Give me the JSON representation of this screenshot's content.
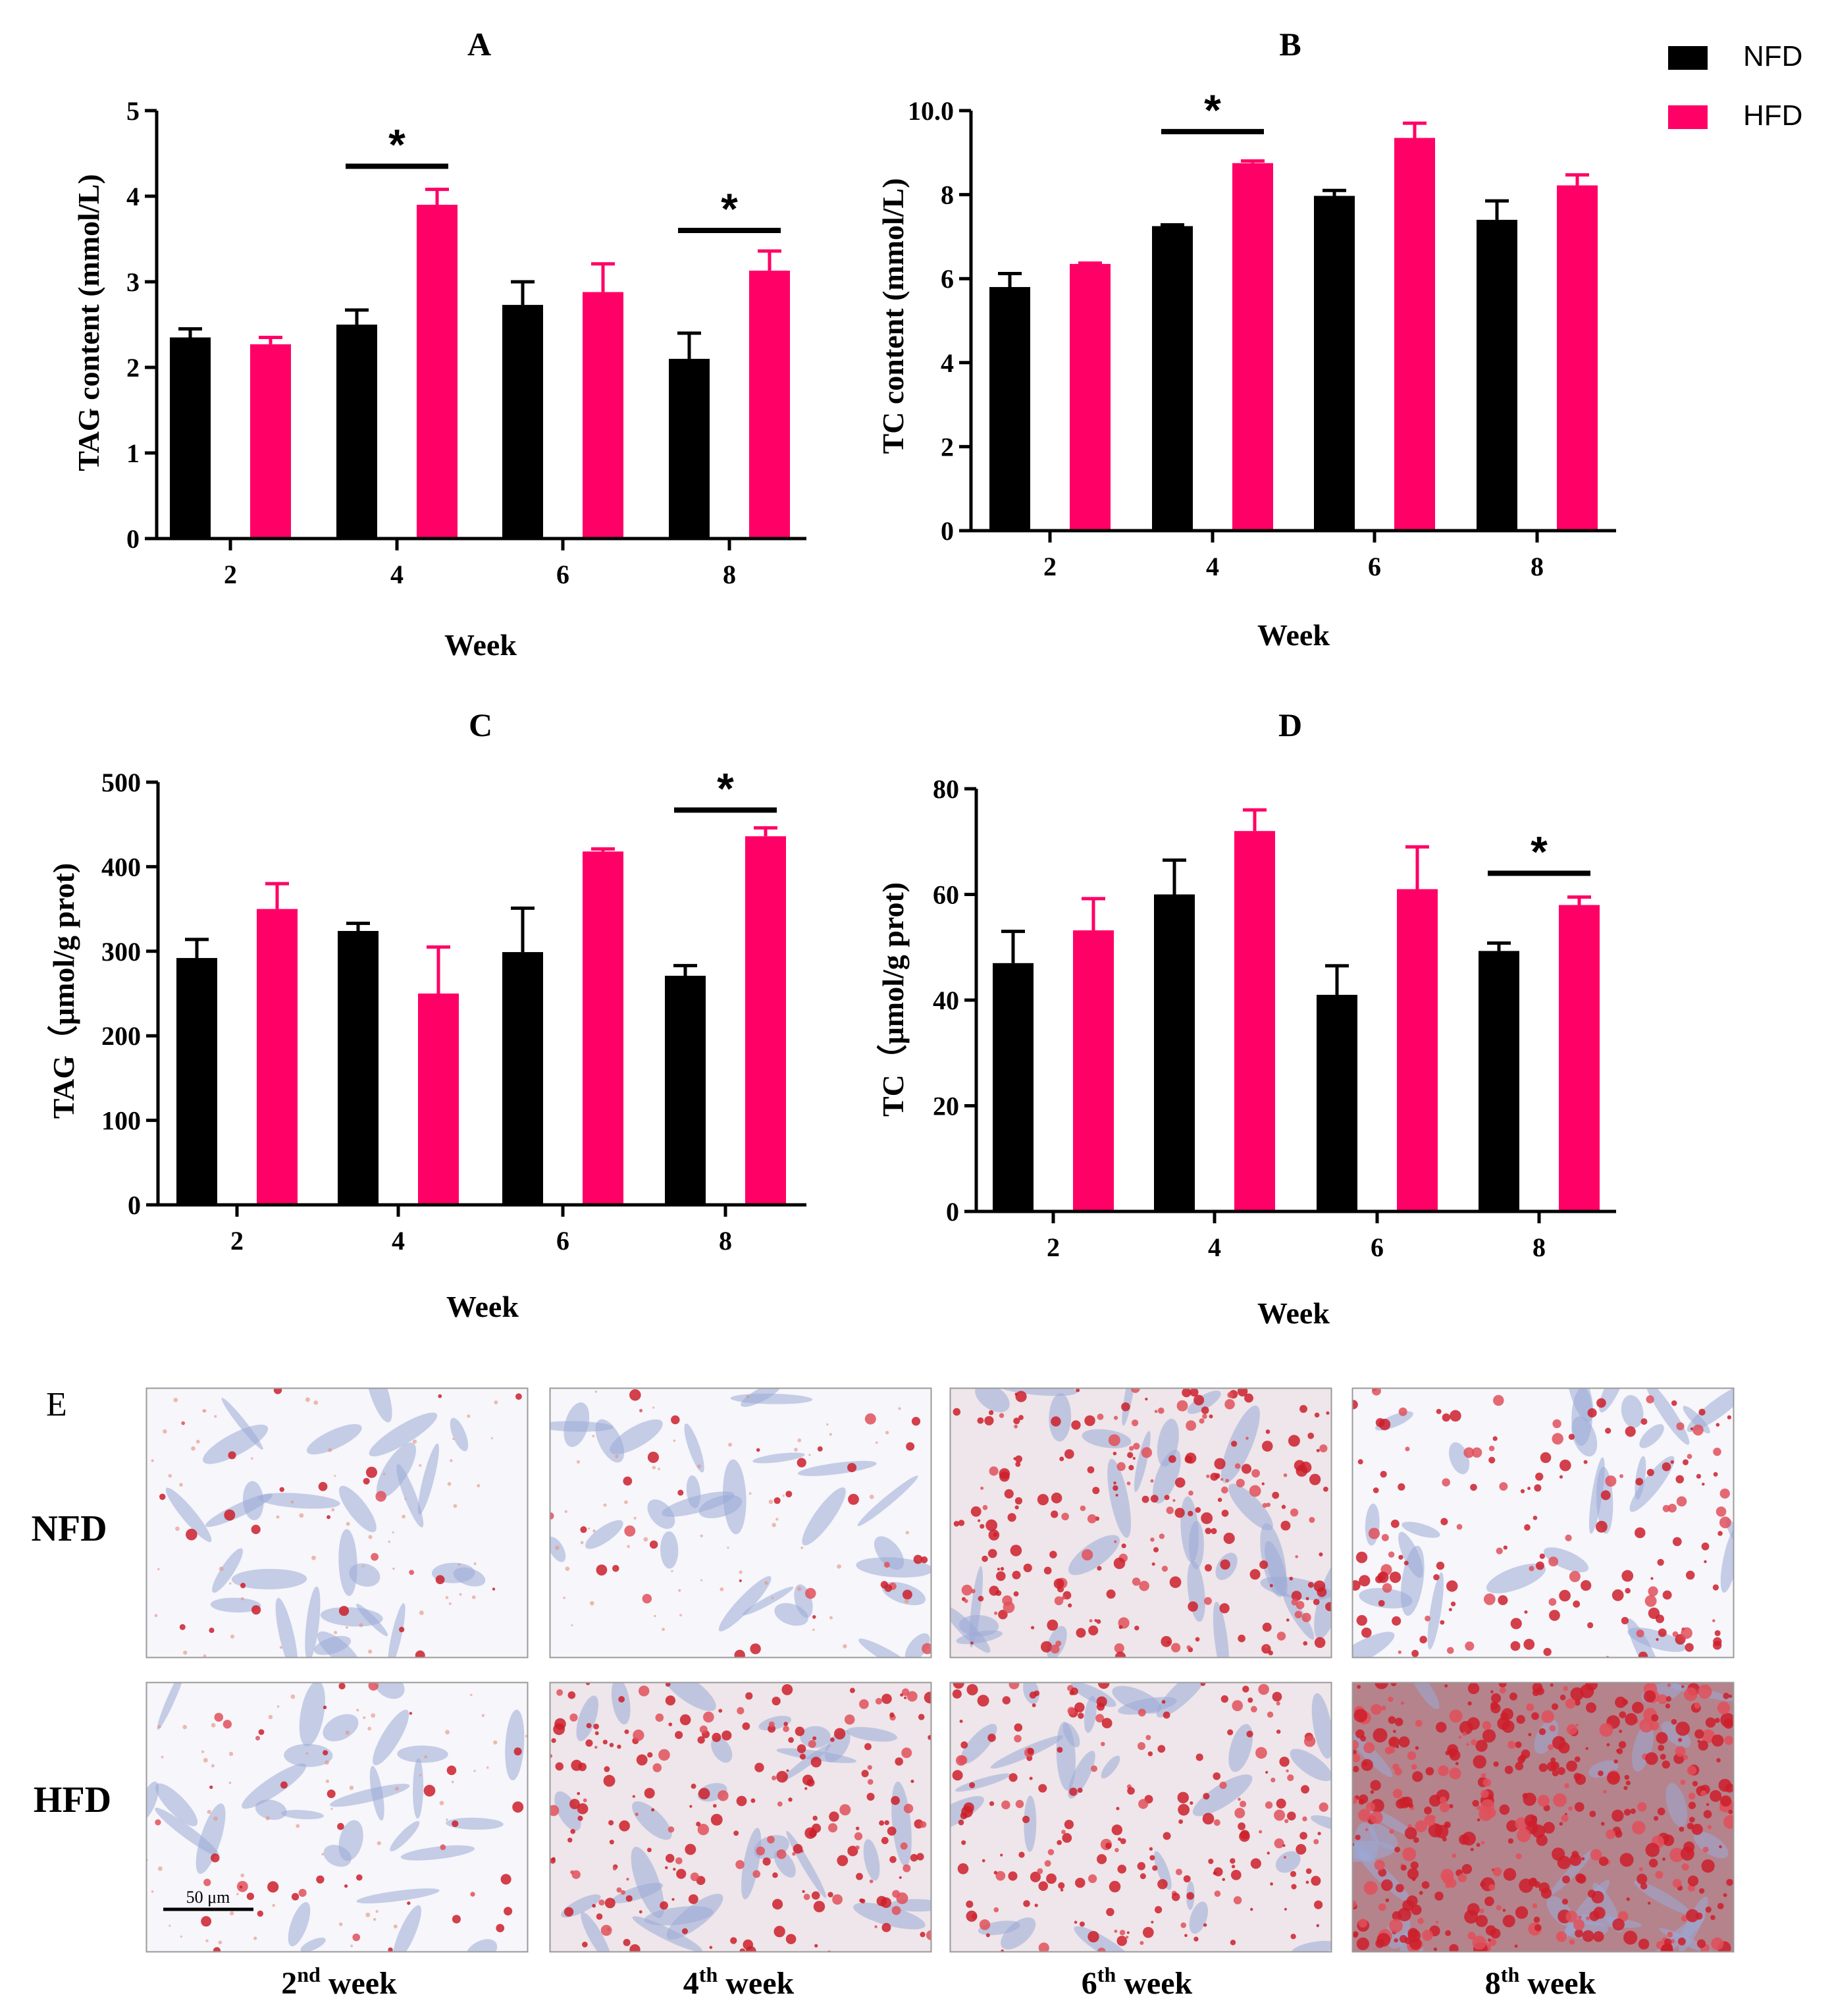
{
  "legend": {
    "items": [
      {
        "label": "NFD",
        "color": "#000000"
      },
      {
        "label": "HFD",
        "color": "#ff0066"
      }
    ]
  },
  "chart_data": [
    {
      "panel": "A",
      "type": "bar",
      "xlabel": "Week",
      "ylabel": "TAG content (mmol/L)",
      "categories": [
        "2",
        "4",
        "6",
        "8"
      ],
      "ylim": [
        0,
        5
      ],
      "yticks": [
        0,
        1,
        2,
        3,
        4,
        5
      ],
      "series": [
        {
          "name": "NFD",
          "color": "#000000",
          "values": [
            2.35,
            2.5,
            2.73,
            2.1
          ],
          "errors": [
            0.1,
            0.17,
            0.27,
            0.3
          ]
        },
        {
          "name": "HFD",
          "color": "#ff0066",
          "values": [
            2.27,
            3.9,
            2.88,
            3.13
          ],
          "errors": [
            0.08,
            0.18,
            0.33,
            0.23
          ]
        }
      ],
      "significance": [
        {
          "category_index": 1,
          "label": "*",
          "y": 4.35
        },
        {
          "category_index": 3,
          "label": "*",
          "y": 3.6
        }
      ]
    },
    {
      "panel": "B",
      "type": "bar",
      "xlabel": "Week",
      "ylabel": "TC content (mmol/L)",
      "categories": [
        "2",
        "4",
        "6",
        "8"
      ],
      "ylim": [
        0,
        10
      ],
      "yticks": [
        0,
        2,
        4,
        6,
        8,
        10
      ],
      "ytick_labels": [
        "0",
        "2",
        "4",
        "6",
        "8",
        "10.0"
      ],
      "series": [
        {
          "name": "NFD",
          "color": "#000000",
          "values": [
            5.8,
            7.25,
            7.97,
            7.4
          ],
          "errors": [
            0.32,
            0.03,
            0.13,
            0.45
          ]
        },
        {
          "name": "HFD",
          "color": "#ff0066",
          "values": [
            6.35,
            8.75,
            9.35,
            8.22
          ],
          "errors": [
            0.02,
            0.05,
            0.35,
            0.25
          ]
        }
      ],
      "significance": [
        {
          "category_index": 1,
          "label": "*",
          "y": 9.5
        }
      ]
    },
    {
      "panel": "C",
      "type": "bar",
      "xlabel": "Week",
      "ylabel": "TAG（μmol/g prot)",
      "categories": [
        "2",
        "4",
        "6",
        "8"
      ],
      "ylim": [
        0,
        500
      ],
      "yticks": [
        0,
        100,
        200,
        300,
        400,
        500
      ],
      "series": [
        {
          "name": "NFD",
          "color": "#000000",
          "values": [
            292,
            324,
            299,
            271
          ],
          "errors": [
            22,
            9,
            52,
            12
          ]
        },
        {
          "name": "HFD",
          "color": "#ff0066",
          "values": [
            350,
            250,
            418,
            436
          ],
          "errors": [
            30,
            55,
            3,
            10
          ]
        }
      ],
      "significance": [
        {
          "category_index": 3,
          "label": "*",
          "y": 467
        }
      ]
    },
    {
      "panel": "D",
      "type": "bar",
      "xlabel": "Week",
      "ylabel": "TC（μmol/g prot)",
      "categories": [
        "2",
        "4",
        "6",
        "8"
      ],
      "ylim": [
        0,
        80
      ],
      "yticks": [
        0,
        20,
        40,
        60,
        80
      ],
      "series": [
        {
          "name": "NFD",
          "color": "#000000",
          "values": [
            47,
            60,
            41,
            49.3
          ],
          "errors": [
            6,
            6.5,
            5.5,
            1.5
          ]
        },
        {
          "name": "HFD",
          "color": "#ff0066",
          "values": [
            53.2,
            72,
            61,
            58
          ],
          "errors": [
            6,
            4,
            8,
            1.5
          ]
        }
      ],
      "significance": [
        {
          "category_index": 3,
          "label": "*",
          "y": 64
        }
      ]
    }
  ],
  "micrographs": {
    "panel": "E",
    "rows": [
      {
        "label": "NFD",
        "stain_levels": [
          0.05,
          0.07,
          0.45,
          0.3
        ]
      },
      {
        "label": "HFD",
        "stain_levels": [
          0.08,
          0.42,
          0.4,
          0.9
        ]
      }
    ],
    "columns": [
      {
        "base": "2",
        "suffix": "nd",
        "rest": " week"
      },
      {
        "base": "4",
        "suffix": "th",
        "rest": " week"
      },
      {
        "base": "6",
        "suffix": "th",
        "rest": " week"
      },
      {
        "base": "8",
        "suffix": "th",
        "rest": " week"
      }
    ],
    "scale_bar": "50 μm"
  }
}
